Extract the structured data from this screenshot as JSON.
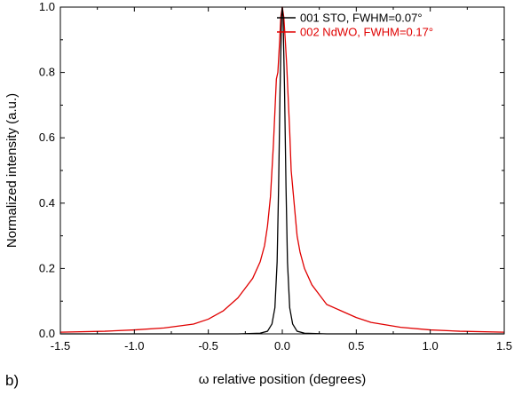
{
  "chart_data": {
    "type": "line",
    "panel_label": "b)",
    "xlabel": "ω relative position (degrees)",
    "ylabel": "Normalized intensity (a.u.)",
    "xlim": [
      -1.5,
      1.5
    ],
    "ylim": [
      0.0,
      1.0
    ],
    "x_ticks": [
      "-1.5",
      "-1.0",
      "-0.5",
      "0.0",
      "0.5",
      "1.0",
      "1.5"
    ],
    "y_ticks": [
      "0.0",
      "0.2",
      "0.4",
      "0.6",
      "0.8",
      "1.0"
    ],
    "grid": false,
    "legend_position": "top-right",
    "series": [
      {
        "name": "001 STO, FWHM=0.07°",
        "color": "#000000",
        "x": [
          -1.5,
          -0.3,
          -0.15,
          -0.1,
          -0.07,
          -0.05,
          -0.035,
          -0.025,
          -0.015,
          -0.005,
          0.0,
          0.005,
          0.015,
          0.025,
          0.035,
          0.05,
          0.07,
          0.1,
          0.15,
          0.3,
          1.5
        ],
        "y": [
          0.0,
          0.0,
          0.002,
          0.008,
          0.03,
          0.08,
          0.22,
          0.45,
          0.75,
          0.97,
          1.0,
          0.97,
          0.75,
          0.45,
          0.22,
          0.08,
          0.03,
          0.008,
          0.002,
          0.0,
          0.0
        ]
      },
      {
        "name": "002 NdWO, FWHM=0.17°",
        "color": "#e00000",
        "x": [
          -1.5,
          -1.2,
          -1.0,
          -0.8,
          -0.6,
          -0.5,
          -0.4,
          -0.3,
          -0.25,
          -0.2,
          -0.15,
          -0.12,
          -0.1,
          -0.08,
          -0.06,
          -0.05,
          -0.04,
          -0.03,
          -0.02,
          -0.01,
          0.0,
          0.01,
          0.02,
          0.03,
          0.04,
          0.05,
          0.06,
          0.08,
          0.1,
          0.12,
          0.15,
          0.2,
          0.25,
          0.3,
          0.4,
          0.5,
          0.6,
          0.8,
          1.0,
          1.2,
          1.5
        ],
        "y": [
          0.005,
          0.008,
          0.012,
          0.018,
          0.03,
          0.045,
          0.07,
          0.11,
          0.14,
          0.17,
          0.22,
          0.27,
          0.33,
          0.42,
          0.58,
          0.68,
          0.78,
          0.8,
          0.88,
          0.97,
          1.0,
          0.97,
          0.9,
          0.82,
          0.72,
          0.62,
          0.5,
          0.4,
          0.3,
          0.25,
          0.2,
          0.15,
          0.12,
          0.09,
          0.07,
          0.05,
          0.035,
          0.02,
          0.012,
          0.008,
          0.005
        ]
      }
    ]
  }
}
